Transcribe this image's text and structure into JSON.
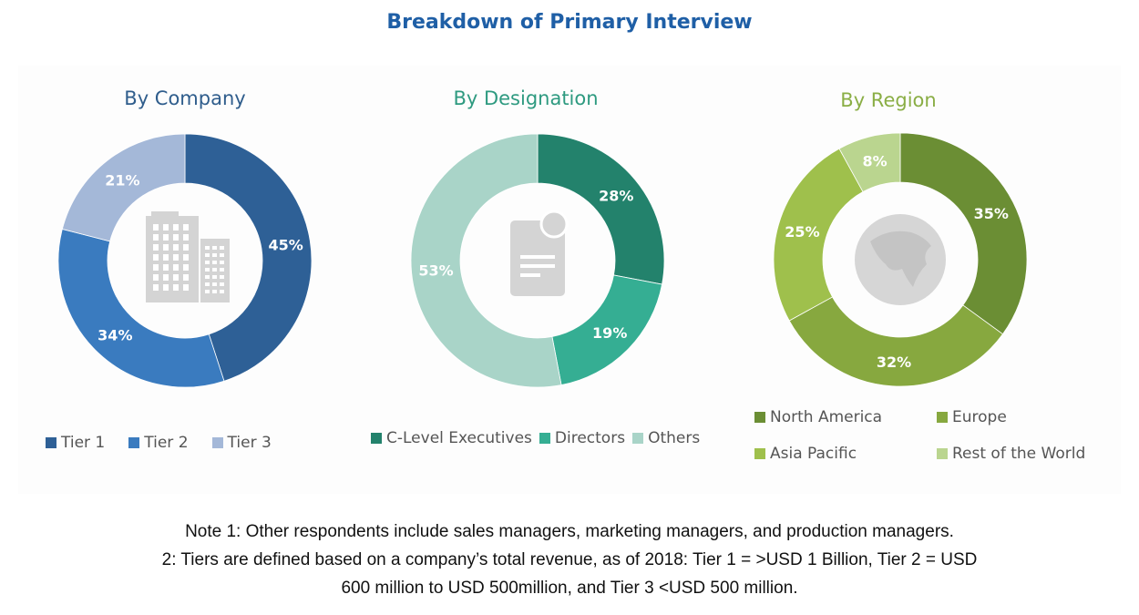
{
  "title": "Breakdown of Primary Interview",
  "chart_data": [
    {
      "type": "pie",
      "title": "By Company",
      "title_color": "#2f5d8c",
      "donut": true,
      "center_icon": "building-icon",
      "categories": [
        "Tier 1",
        "Tier 2",
        "Tier 3"
      ],
      "values": [
        45,
        34,
        21
      ],
      "labels": [
        "45%",
        "34%",
        "21%"
      ],
      "colors": [
        "#2e6096",
        "#3a7bbf",
        "#a4b8d8"
      ],
      "legend": "bottom"
    },
    {
      "type": "pie",
      "title": "By Designation",
      "title_color": "#2e9a80",
      "donut": true,
      "center_icon": "certificate-document-icon",
      "categories": [
        "C-Level Executives",
        "Directors",
        "Others"
      ],
      "values": [
        28,
        19,
        53
      ],
      "labels": [
        "28%",
        "19%",
        "53%"
      ],
      "colors": [
        "#23826c",
        "#35ae93",
        "#a9d4c8"
      ],
      "legend": "bottom"
    },
    {
      "type": "pie",
      "title": "By Region",
      "title_color": "#8aae45",
      "donut": true,
      "center_icon": "globe-icon",
      "categories": [
        "North America",
        "Europe",
        "Asia Pacific",
        "Rest of the World"
      ],
      "values": [
        35,
        32,
        25,
        8
      ],
      "labels": [
        "35%",
        "32%",
        "25%",
        "8%"
      ],
      "colors": [
        "#6b8e34",
        "#87a83f",
        "#9fc04c",
        "#bad58f"
      ],
      "legend": "bottom"
    }
  ],
  "notes": [
    "Note 1: Other respondents include sales managers, marketing managers, and production managers.",
    "2: Tiers are defined based on a company’s total revenue, as of 2018: Tier 1 = >USD 1 Billion, Tier 2 = USD",
    "600 million to USD 500million, and Tier 3 <USD 500 million."
  ]
}
